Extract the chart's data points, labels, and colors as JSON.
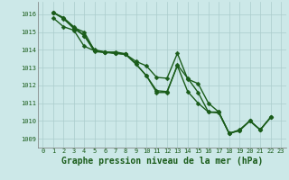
{
  "title": "Graphe pression niveau de la mer (hPa)",
  "background_color": "#cce8e8",
  "grid_color": "#aacccc",
  "line_color": "#1a5c1a",
  "xlim": [
    -0.5,
    23.5
  ],
  "ylim": [
    1008.5,
    1016.7
  ],
  "yticks": [
    1009,
    1010,
    1011,
    1012,
    1013,
    1014,
    1015,
    1016
  ],
  "xticks": [
    0,
    1,
    2,
    3,
    4,
    5,
    6,
    7,
    8,
    9,
    10,
    11,
    12,
    13,
    14,
    15,
    16,
    17,
    18,
    19,
    20,
    21,
    22,
    23
  ],
  "series": [
    {
      "x": [
        1,
        2,
        3,
        4,
        5,
        6,
        7,
        8,
        9,
        10,
        11,
        12,
        13,
        14,
        15,
        16,
        17,
        18,
        19,
        20,
        21,
        22
      ],
      "y": [
        1016.1,
        1015.8,
        1015.3,
        1014.8,
        1013.9,
        1013.85,
        1013.8,
        1013.75,
        1013.2,
        1012.55,
        1011.6,
        1011.6,
        1013.15,
        1012.4,
        1011.6,
        1010.5,
        1010.5,
        1009.3,
        1009.45,
        1010.0,
        1009.5,
        1010.2
      ]
    },
    {
      "x": [
        1,
        2,
        3,
        4,
        5,
        6,
        7,
        8,
        9,
        10,
        11,
        12,
        13,
        14,
        15,
        16,
        17,
        18,
        19,
        20,
        21,
        22
      ],
      "y": [
        1016.1,
        1015.8,
        1015.25,
        1015.0,
        1013.95,
        1013.88,
        1013.82,
        1013.75,
        1013.35,
        1013.1,
        1012.45,
        1012.4,
        1013.8,
        1012.35,
        1012.1,
        1011.0,
        1010.5,
        1009.3,
        1009.5,
        1010.0,
        1009.5,
        1010.2
      ]
    },
    {
      "x": [
        1,
        2,
        3,
        4,
        5,
        6,
        7,
        8
      ],
      "y": [
        1015.8,
        1015.3,
        1015.1,
        1014.2,
        1013.95,
        1013.85,
        1013.88,
        1013.78
      ]
    },
    {
      "x": [
        1,
        2,
        3,
        4,
        5,
        6,
        7,
        8,
        9,
        10,
        11,
        12,
        13,
        14,
        15,
        16,
        17,
        18,
        19,
        20,
        21,
        22
      ],
      "y": [
        1016.1,
        1015.75,
        1015.2,
        1014.8,
        1014.0,
        1013.88,
        1013.82,
        1013.75,
        1013.2,
        1012.55,
        1011.7,
        1011.65,
        1013.1,
        1011.65,
        1011.0,
        1010.5,
        1010.45,
        1009.3,
        1009.47,
        1010.02,
        1009.5,
        1010.2
      ]
    }
  ],
  "marker": "D",
  "marker_size": 2.5,
  "line_width": 1.0,
  "title_fontsize": 7,
  "tick_fontsize": 5
}
